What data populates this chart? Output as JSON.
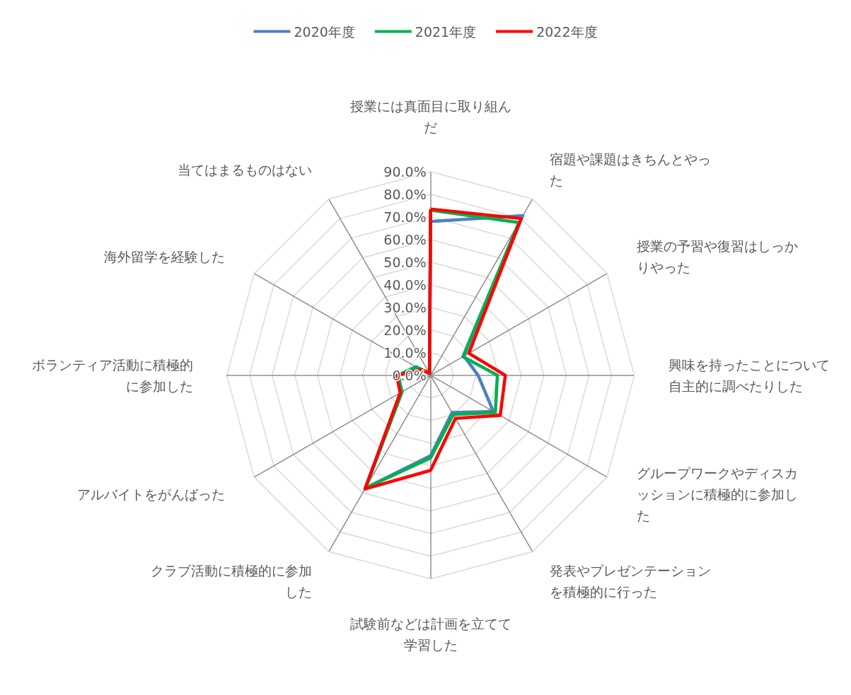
{
  "chart_data": {
    "type": "radar",
    "categories": [
      "授業には真面目に取り組んだ",
      "宿題や課題はきちんとやった",
      "授業の予習や復習はしっかりやった",
      "興味を持ったことについて自主的に調べたりした",
      "グループワークやディスカッションに積極的に参加した",
      "発表やプレゼンテーションを積極的に行った",
      "試験前などは計画を立てて学習した",
      "クラブ活動に積極的に参加した",
      "アルバイトをがんばった",
      "ボランティア活動に積極的に参加した",
      "海外留学を経験した",
      "当てはまるものはない"
    ],
    "series": [
      {
        "name": "2020年度",
        "color": "#4f81bd",
        "values": [
          68,
          81.5,
          17,
          21,
          32,
          19,
          35.5,
          57.5,
          15,
          14,
          7,
          1
        ]
      },
      {
        "name": "2021年度",
        "color": "#00b050",
        "values": [
          73,
          78,
          16.5,
          29.5,
          33,
          20,
          36.5,
          57.5,
          14.5,
          14.5,
          7.5,
          1
        ]
      },
      {
        "name": "2022年度",
        "color": "#ff0000",
        "values": [
          73.5,
          80,
          19.5,
          33,
          35.5,
          22,
          42,
          58,
          15.5,
          15,
          5,
          1
        ]
      }
    ],
    "ylim": [
      0,
      90
    ],
    "yticks": [
      {
        "value": 0,
        "label": "0.0%"
      },
      {
        "value": 10,
        "label": "10.0%"
      },
      {
        "value": 20,
        "label": "20.0%"
      },
      {
        "value": 30,
        "label": "30.0%"
      },
      {
        "value": 40,
        "label": "40.0%"
      },
      {
        "value": 50,
        "label": "50.0%"
      },
      {
        "value": 60,
        "label": "60.0%"
      },
      {
        "value": 70,
        "label": "70.0%"
      },
      {
        "value": 80,
        "label": "80.0%"
      },
      {
        "value": 90,
        "label": "90.0%"
      }
    ],
    "legend": "top",
    "marker": "none",
    "line_style": "solid",
    "grid": true
  }
}
